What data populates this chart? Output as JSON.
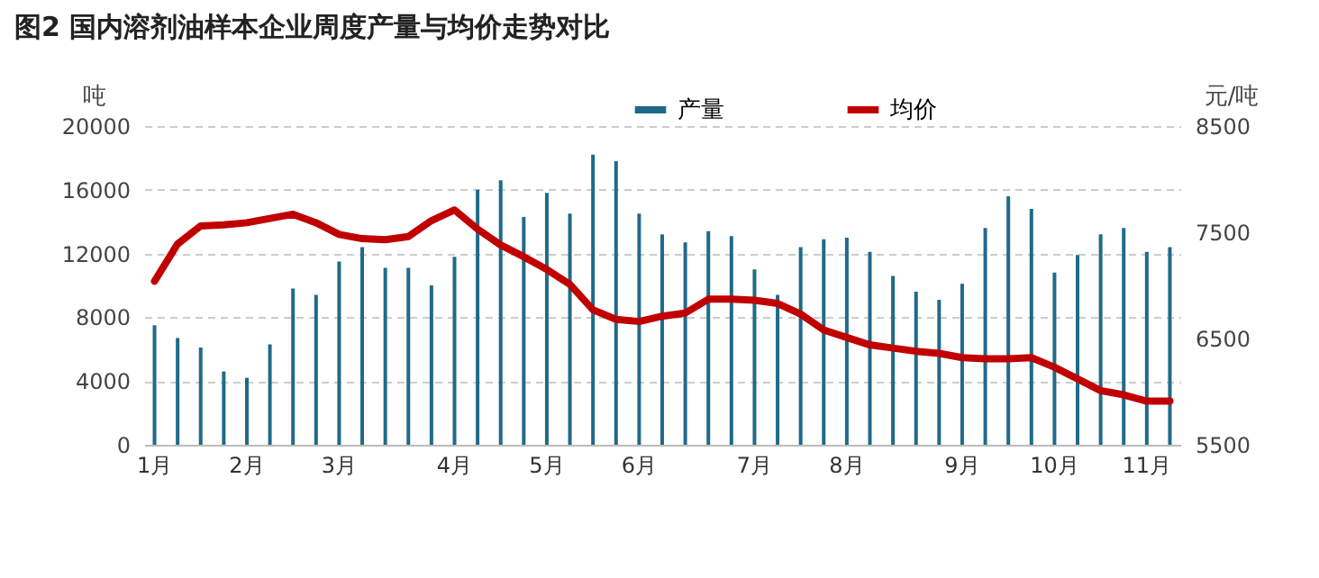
{
  "chart_data": {
    "type": "bar",
    "title": "图2 国内溶剂油样本企业周度产量与均价走势对比",
    "ylabel": "吨",
    "y2label": "元/吨",
    "categories": [
      "1月",
      null,
      null,
      null,
      "2月",
      null,
      null,
      null,
      "3月",
      null,
      null,
      null,
      null,
      "4月",
      null,
      null,
      null,
      "5月",
      null,
      null,
      null,
      "6月",
      null,
      null,
      null,
      null,
      "7月",
      null,
      null,
      null,
      "8月",
      null,
      null,
      null,
      null,
      "9月",
      null,
      null,
      null,
      "10月",
      null,
      null,
      null,
      "11月",
      null
    ],
    "series": [
      {
        "name": "产量",
        "color": "#1f6a8a",
        "values": [
          7500,
          6700,
          6100,
          4600,
          4200,
          6300,
          9800,
          9400,
          11500,
          12400,
          11100,
          11100,
          10000,
          11800,
          16000,
          16600,
          14300,
          15800,
          14500,
          18200,
          17800,
          14500,
          13200,
          12700,
          13400,
          13100,
          11000,
          9400,
          12400,
          12900,
          13000,
          12100,
          10600,
          9600,
          9100,
          10100,
          13600,
          15600,
          14800,
          10800,
          11900,
          13200,
          13600,
          12100,
          12400
        ]
      },
      {
        "name": "均价",
        "type": "line",
        "axis": "y2",
        "color": "#c00000",
        "values": [
          7040,
          7390,
          7560,
          7570,
          7590,
          7630,
          7670,
          7590,
          7480,
          7440,
          7430,
          7460,
          7610,
          7710,
          7530,
          7380,
          7270,
          7150,
          7010,
          6770,
          6680,
          6660,
          6710,
          6740,
          6870,
          6870,
          6860,
          6830,
          6730,
          6580,
          6510,
          6440,
          6410,
          6380,
          6360,
          6320,
          6310,
          6310,
          6320,
          6230,
          6120,
          6010,
          5970,
          5910,
          5910
        ]
      }
    ],
    "ylim": [
      0,
      20000
    ],
    "yticks": [
      0,
      4000,
      8000,
      12000,
      16000,
      20000
    ],
    "y2lim": [
      5500,
      8500
    ],
    "y2ticks": [
      5500,
      6500,
      7500,
      8500
    ],
    "grid": "y",
    "legend": "top"
  }
}
